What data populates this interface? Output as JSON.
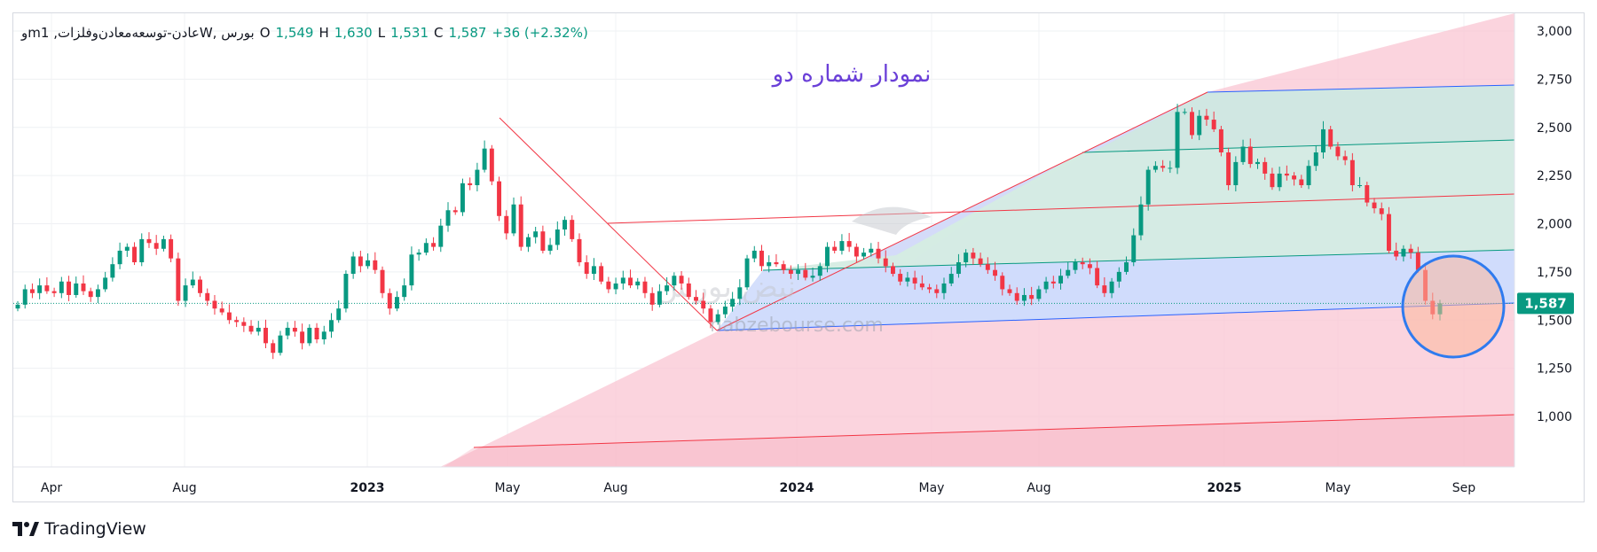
{
  "legend": {
    "symbol": "وmعادن-توسعه‌معادن‌وفلزات, 1W, بورس",
    "open_label": "O",
    "open": "1,549",
    "high_label": "H",
    "high": "1,630",
    "low_label": "L",
    "low": "1,531",
    "close_label": "C",
    "close": "1,587",
    "change": "+36 (+2.32%)"
  },
  "annotation_title": "نمودار شماره دو",
  "watermark": "nabzebourse.com",
  "watermark_logo_text": "نبض بورس",
  "branding": "TradingView",
  "colors": {
    "up": "#089981",
    "down": "#f23645",
    "accent_text": "#6a3fd8",
    "fan_blue": "#2962ff",
    "fan_teal": "#089981",
    "fan_red": "#f23645",
    "circle": "#2f7bef"
  },
  "chart_data": {
    "type": "candlestick",
    "timeframe": "1W",
    "y_axis_ticks": [
      1000,
      1250,
      1500,
      1750,
      2000,
      2250,
      2500,
      2750,
      3000
    ],
    "y_tick_labels": [
      "1,000",
      "1,250",
      "1,500",
      "1,750",
      "2,000",
      "2,250",
      "2,500",
      "2,750",
      "3,000"
    ],
    "ylim": [
      780,
      3100
    ],
    "x_axis_labels": [
      "Apr",
      "Aug",
      "2023",
      "May",
      "Aug",
      "2024",
      "May",
      "Aug",
      "2025",
      "May",
      "Sep"
    ],
    "x_axis_bold": [
      false,
      false,
      true,
      false,
      false,
      true,
      false,
      false,
      true,
      false,
      false
    ],
    "last_price_label": "1,587",
    "last_price": 1587,
    "closes": [
      1580,
      1660,
      1640,
      1680,
      1650,
      1640,
      1700,
      1630,
      1690,
      1650,
      1620,
      1660,
      1720,
      1790,
      1860,
      1880,
      1800,
      1920,
      1900,
      1870,
      1920,
      1820,
      1600,
      1680,
      1710,
      1640,
      1600,
      1560,
      1540,
      1500,
      1490,
      1470,
      1440,
      1460,
      1380,
      1330,
      1420,
      1460,
      1440,
      1380,
      1460,
      1400,
      1440,
      1500,
      1560,
      1740,
      1830,
      1780,
      1810,
      1760,
      1640,
      1560,
      1620,
      1680,
      1840,
      1850,
      1900,
      1880,
      1990,
      2070,
      2060,
      2210,
      2200,
      2280,
      2390,
      2220,
      2040,
      1950,
      2100,
      1880,
      1930,
      1960,
      1860,
      1890,
      1970,
      2020,
      1920,
      1800,
      1740,
      1780,
      1700,
      1660,
      1690,
      1720,
      1680,
      1700,
      1640,
      1580,
      1650,
      1680,
      1730,
      1690,
      1620,
      1600,
      1560,
      1490,
      1530,
      1570,
      1610,
      1670,
      1820,
      1860,
      1780,
      1800,
      1790,
      1760,
      1740,
      1760,
      1720,
      1730,
      1780,
      1880,
      1860,
      1910,
      1880,
      1830,
      1850,
      1870,
      1820,
      1780,
      1740,
      1700,
      1720,
      1690,
      1670,
      1660,
      1640,
      1690,
      1740,
      1800,
      1850,
      1820,
      1790,
      1760,
      1730,
      1660,
      1640,
      1600,
      1630,
      1610,
      1660,
      1700,
      1690,
      1730,
      1760,
      1800,
      1790,
      1770,
      1680,
      1640,
      1700,
      1750,
      1800,
      1940,
      2100,
      2280,
      2300,
      2290,
      2290,
      2580,
      2580,
      2460,
      2560,
      2540,
      2490,
      2370,
      2200,
      2320,
      2400,
      2310,
      2320,
      2260,
      2190,
      2260,
      2250,
      2230,
      2200,
      2300,
      2370,
      2490,
      2400,
      2350,
      2330,
      2200,
      2200,
      2110,
      2080,
      2050,
      1860,
      1830,
      1870,
      1850,
      1760,
      1600,
      1530,
      1587
    ]
  }
}
